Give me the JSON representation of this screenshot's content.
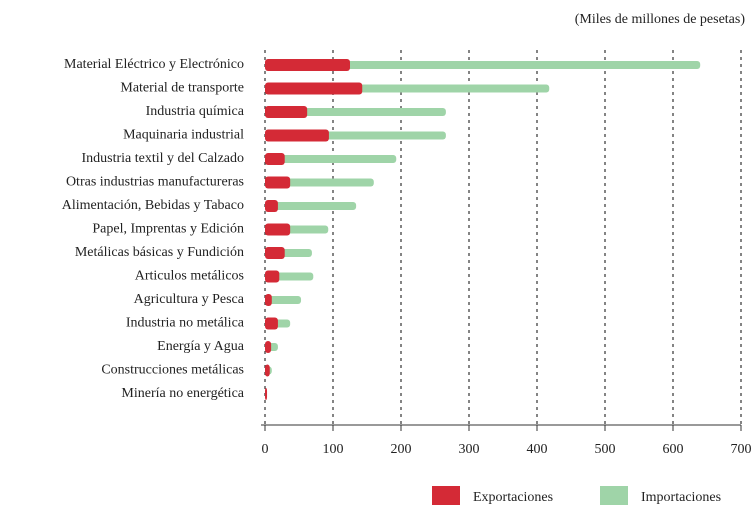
{
  "chart_data": {
    "type": "overlapped_bar_horizontal",
    "subtitle": "(Miles de millones de pesetas)",
    "categories": [
      "Material Eléctrico y Electrónico",
      "Material de transporte",
      "Industria química",
      "Maquinaria industrial",
      "Industria textil y del Calzado",
      "Otras industrias manufactureras",
      "Alimentación, Bebidas y Tabaco",
      "Papel, Imprentas y Edición",
      "Metálicas básicas y Fundición",
      "Articulos metálicos",
      "Agricultura y Pesca",
      "Industria no metálica",
      "Energía y Agua",
      "Construcciones metálicas",
      "Minería no energética"
    ],
    "series": [
      {
        "name": "Exportaciones",
        "color": "#d42a36",
        "values": [
          125,
          143,
          62,
          94,
          29,
          37,
          19,
          37,
          29,
          21,
          10,
          19,
          9,
          7,
          3
        ]
      },
      {
        "name": "Importaciones",
        "color": "#9fd4a8",
        "values": [
          640,
          418,
          266,
          266,
          193,
          160,
          134,
          93,
          69,
          71,
          53,
          37,
          19,
          10,
          1
        ]
      }
    ],
    "xlim": [
      0,
      700
    ],
    "xticks": [
      0,
      100,
      200,
      300,
      400,
      500,
      600,
      700
    ],
    "grid": true
  }
}
